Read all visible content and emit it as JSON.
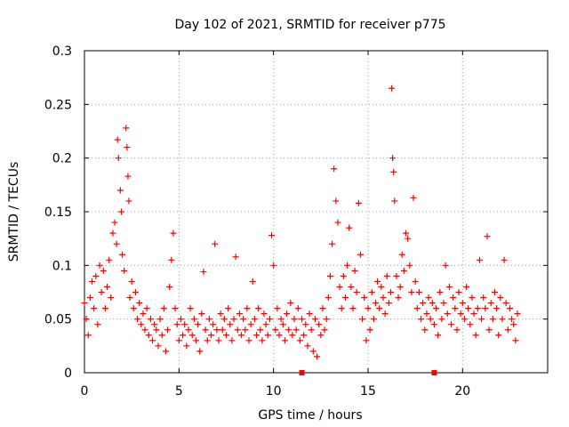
{
  "chart_data": {
    "type": "scatter",
    "title": "Day 102 of 2021, SRMTID for receiver p775",
    "xlabel": "GPS time / hours",
    "ylabel": "SRMTID / TECUs",
    "xlim": [
      0,
      24.5
    ],
    "ylim": [
      0,
      0.3
    ],
    "x_ticks": [
      0,
      5,
      10,
      15,
      20
    ],
    "x_tick_labels": [
      "0",
      "5",
      "10",
      "15",
      "20"
    ],
    "y_ticks": [
      0,
      0.05,
      0.1,
      0.15,
      0.2,
      0.25,
      0.3
    ],
    "y_tick_labels": [
      "0",
      "0.05",
      "0.1",
      "0.15",
      "0.2",
      "0.25",
      "0.3"
    ],
    "grid": true,
    "marker": "+",
    "color": "#ff0000",
    "series": [
      {
        "name": "SRMTID",
        "points": [
          [
            0.0,
            0.065
          ],
          [
            0.1,
            0.05
          ],
          [
            0.2,
            0.035
          ],
          [
            0.3,
            0.07
          ],
          [
            0.4,
            0.085
          ],
          [
            0.5,
            0.06
          ],
          [
            0.6,
            0.09
          ],
          [
            0.7,
            0.045
          ],
          [
            0.8,
            0.1
          ],
          [
            0.9,
            0.075
          ],
          [
            1.0,
            0.095
          ],
          [
            1.1,
            0.06
          ],
          [
            1.2,
            0.08
          ],
          [
            1.3,
            0.105
          ],
          [
            1.4,
            0.07
          ],
          [
            1.5,
            0.13
          ],
          [
            1.6,
            0.14
          ],
          [
            1.7,
            0.12
          ],
          [
            1.75,
            0.217
          ],
          [
            1.8,
            0.2
          ],
          [
            1.9,
            0.17
          ],
          [
            1.95,
            0.15
          ],
          [
            2.0,
            0.11
          ],
          [
            2.1,
            0.095
          ],
          [
            2.2,
            0.228
          ],
          [
            2.25,
            0.21
          ],
          [
            2.3,
            0.183
          ],
          [
            2.35,
            0.16
          ],
          [
            2.4,
            0.07
          ],
          [
            2.5,
            0.085
          ],
          [
            2.6,
            0.06
          ],
          [
            2.7,
            0.075
          ],
          [
            2.8,
            0.05
          ],
          [
            2.9,
            0.065
          ],
          [
            3.0,
            0.045
          ],
          [
            3.1,
            0.055
          ],
          [
            3.2,
            0.04
          ],
          [
            3.3,
            0.06
          ],
          [
            3.4,
            0.035
          ],
          [
            3.5,
            0.05
          ],
          [
            3.6,
            0.03
          ],
          [
            3.7,
            0.045
          ],
          [
            3.8,
            0.04
          ],
          [
            3.9,
            0.025
          ],
          [
            4.0,
            0.05
          ],
          [
            4.1,
            0.035
          ],
          [
            4.2,
            0.06
          ],
          [
            4.3,
            0.02
          ],
          [
            4.4,
            0.04
          ],
          [
            4.5,
            0.08
          ],
          [
            4.6,
            0.105
          ],
          [
            4.7,
            0.13
          ],
          [
            4.8,
            0.06
          ],
          [
            4.9,
            0.045
          ],
          [
            5.0,
            0.03
          ],
          [
            5.1,
            0.05
          ],
          [
            5.2,
            0.035
          ],
          [
            5.3,
            0.045
          ],
          [
            5.4,
            0.025
          ],
          [
            5.5,
            0.04
          ],
          [
            5.6,
            0.06
          ],
          [
            5.7,
            0.035
          ],
          [
            5.8,
            0.05
          ],
          [
            5.9,
            0.03
          ],
          [
            6.0,
            0.045
          ],
          [
            6.1,
            0.02
          ],
          [
            6.2,
            0.055
          ],
          [
            6.3,
            0.094
          ],
          [
            6.4,
            0.04
          ],
          [
            6.5,
            0.03
          ],
          [
            6.6,
            0.05
          ],
          [
            6.7,
            0.035
          ],
          [
            6.8,
            0.045
          ],
          [
            6.9,
            0.12
          ],
          [
            7.0,
            0.04
          ],
          [
            7.1,
            0.03
          ],
          [
            7.2,
            0.055
          ],
          [
            7.3,
            0.04
          ],
          [
            7.4,
            0.05
          ],
          [
            7.5,
            0.035
          ],
          [
            7.6,
            0.06
          ],
          [
            7.7,
            0.045
          ],
          [
            7.8,
            0.03
          ],
          [
            7.9,
            0.05
          ],
          [
            8.0,
            0.108
          ],
          [
            8.1,
            0.04
          ],
          [
            8.2,
            0.055
          ],
          [
            8.3,
            0.035
          ],
          [
            8.4,
            0.05
          ],
          [
            8.5,
            0.04
          ],
          [
            8.6,
            0.06
          ],
          [
            8.7,
            0.03
          ],
          [
            8.8,
            0.045
          ],
          [
            8.9,
            0.085
          ],
          [
            9.0,
            0.05
          ],
          [
            9.1,
            0.035
          ],
          [
            9.2,
            0.06
          ],
          [
            9.3,
            0.04
          ],
          [
            9.4,
            0.03
          ],
          [
            9.5,
            0.055
          ],
          [
            9.6,
            0.045
          ],
          [
            9.7,
            0.035
          ],
          [
            9.8,
            0.05
          ],
          [
            9.9,
            0.128
          ],
          [
            10.0,
            0.1
          ],
          [
            10.1,
            0.04
          ],
          [
            10.2,
            0.06
          ],
          [
            10.3,
            0.035
          ],
          [
            10.4,
            0.05
          ],
          [
            10.5,
            0.045
          ],
          [
            10.6,
            0.03
          ],
          [
            10.7,
            0.055
          ],
          [
            10.8,
            0.04
          ],
          [
            10.9,
            0.065
          ],
          [
            11.0,
            0.035
          ],
          [
            11.1,
            0.05
          ],
          [
            11.2,
            0.04
          ],
          [
            11.3,
            0.06
          ],
          [
            11.4,
            0.03
          ],
          [
            11.5,
            0.05
          ],
          [
            11.6,
            0.035
          ],
          [
            11.7,
            0.045
          ],
          [
            11.8,
            0.025
          ],
          [
            11.9,
            0.055
          ],
          [
            12.0,
            0.04
          ],
          [
            12.1,
            0.02
          ],
          [
            12.2,
            0.05
          ],
          [
            12.3,
            0.015
          ],
          [
            12.4,
            0.045
          ],
          [
            12.5,
            0.035
          ],
          [
            12.6,
            0.06
          ],
          [
            12.7,
            0.04
          ],
          [
            12.8,
            0.05
          ],
          [
            12.9,
            0.07
          ],
          [
            13.0,
            0.09
          ],
          [
            13.1,
            0.12
          ],
          [
            13.2,
            0.19
          ],
          [
            13.3,
            0.16
          ],
          [
            13.4,
            0.14
          ],
          [
            13.5,
            0.08
          ],
          [
            13.6,
            0.06
          ],
          [
            13.7,
            0.09
          ],
          [
            13.8,
            0.07
          ],
          [
            13.9,
            0.1
          ],
          [
            14.0,
            0.135
          ],
          [
            14.1,
            0.08
          ],
          [
            14.2,
            0.06
          ],
          [
            14.3,
            0.095
          ],
          [
            14.4,
            0.075
          ],
          [
            14.5,
            0.158
          ],
          [
            14.6,
            0.11
          ],
          [
            14.7,
            0.05
          ],
          [
            14.8,
            0.07
          ],
          [
            14.9,
            0.03
          ],
          [
            15.0,
            0.06
          ],
          [
            15.1,
            0.04
          ],
          [
            15.2,
            0.075
          ],
          [
            15.3,
            0.05
          ],
          [
            15.4,
            0.065
          ],
          [
            15.5,
            0.085
          ],
          [
            15.6,
            0.06
          ],
          [
            15.7,
            0.08
          ],
          [
            15.8,
            0.07
          ],
          [
            15.9,
            0.055
          ],
          [
            16.0,
            0.09
          ],
          [
            16.1,
            0.065
          ],
          [
            16.2,
            0.075
          ],
          [
            16.25,
            0.265
          ],
          [
            16.3,
            0.2
          ],
          [
            16.35,
            0.187
          ],
          [
            16.4,
            0.16
          ],
          [
            16.5,
            0.09
          ],
          [
            16.6,
            0.07
          ],
          [
            16.7,
            0.08
          ],
          [
            16.8,
            0.11
          ],
          [
            16.9,
            0.095
          ],
          [
            17.0,
            0.13
          ],
          [
            17.1,
            0.125
          ],
          [
            17.2,
            0.1
          ],
          [
            17.3,
            0.075
          ],
          [
            17.4,
            0.163
          ],
          [
            17.5,
            0.085
          ],
          [
            17.6,
            0.06
          ],
          [
            17.7,
            0.075
          ],
          [
            17.8,
            0.05
          ],
          [
            17.9,
            0.065
          ],
          [
            18.0,
            0.04
          ],
          [
            18.1,
            0.055
          ],
          [
            18.2,
            0.07
          ],
          [
            18.3,
            0.05
          ],
          [
            18.4,
            0.065
          ],
          [
            18.5,
            0.045
          ],
          [
            18.6,
            0.06
          ],
          [
            18.7,
            0.035
          ],
          [
            18.8,
            0.075
          ],
          [
            18.9,
            0.05
          ],
          [
            19.0,
            0.065
          ],
          [
            19.1,
            0.1
          ],
          [
            19.2,
            0.055
          ],
          [
            19.3,
            0.08
          ],
          [
            19.4,
            0.045
          ],
          [
            19.5,
            0.07
          ],
          [
            19.6,
            0.06
          ],
          [
            19.7,
            0.04
          ],
          [
            19.8,
            0.075
          ],
          [
            19.9,
            0.055
          ],
          [
            20.0,
            0.065
          ],
          [
            20.1,
            0.05
          ],
          [
            20.2,
            0.08
          ],
          [
            20.3,
            0.06
          ],
          [
            20.4,
            0.045
          ],
          [
            20.5,
            0.07
          ],
          [
            20.6,
            0.055
          ],
          [
            20.7,
            0.035
          ],
          [
            20.8,
            0.06
          ],
          [
            20.9,
            0.105
          ],
          [
            21.0,
            0.05
          ],
          [
            21.1,
            0.07
          ],
          [
            21.2,
            0.06
          ],
          [
            21.3,
            0.127
          ],
          [
            21.4,
            0.04
          ],
          [
            21.5,
            0.065
          ],
          [
            21.6,
            0.05
          ],
          [
            21.7,
            0.075
          ],
          [
            21.8,
            0.06
          ],
          [
            21.9,
            0.035
          ],
          [
            22.0,
            0.07
          ],
          [
            22.1,
            0.05
          ],
          [
            22.2,
            0.105
          ],
          [
            22.3,
            0.065
          ],
          [
            22.4,
            0.04
          ],
          [
            22.5,
            0.06
          ],
          [
            22.6,
            0.05
          ],
          [
            22.7,
            0.045
          ],
          [
            22.8,
            0.03
          ],
          [
            22.9,
            0.055
          ]
        ]
      },
      {
        "name": "markers at zero",
        "points": [
          [
            11.5,
            0.0
          ],
          [
            18.5,
            0.0
          ]
        ]
      }
    ]
  }
}
